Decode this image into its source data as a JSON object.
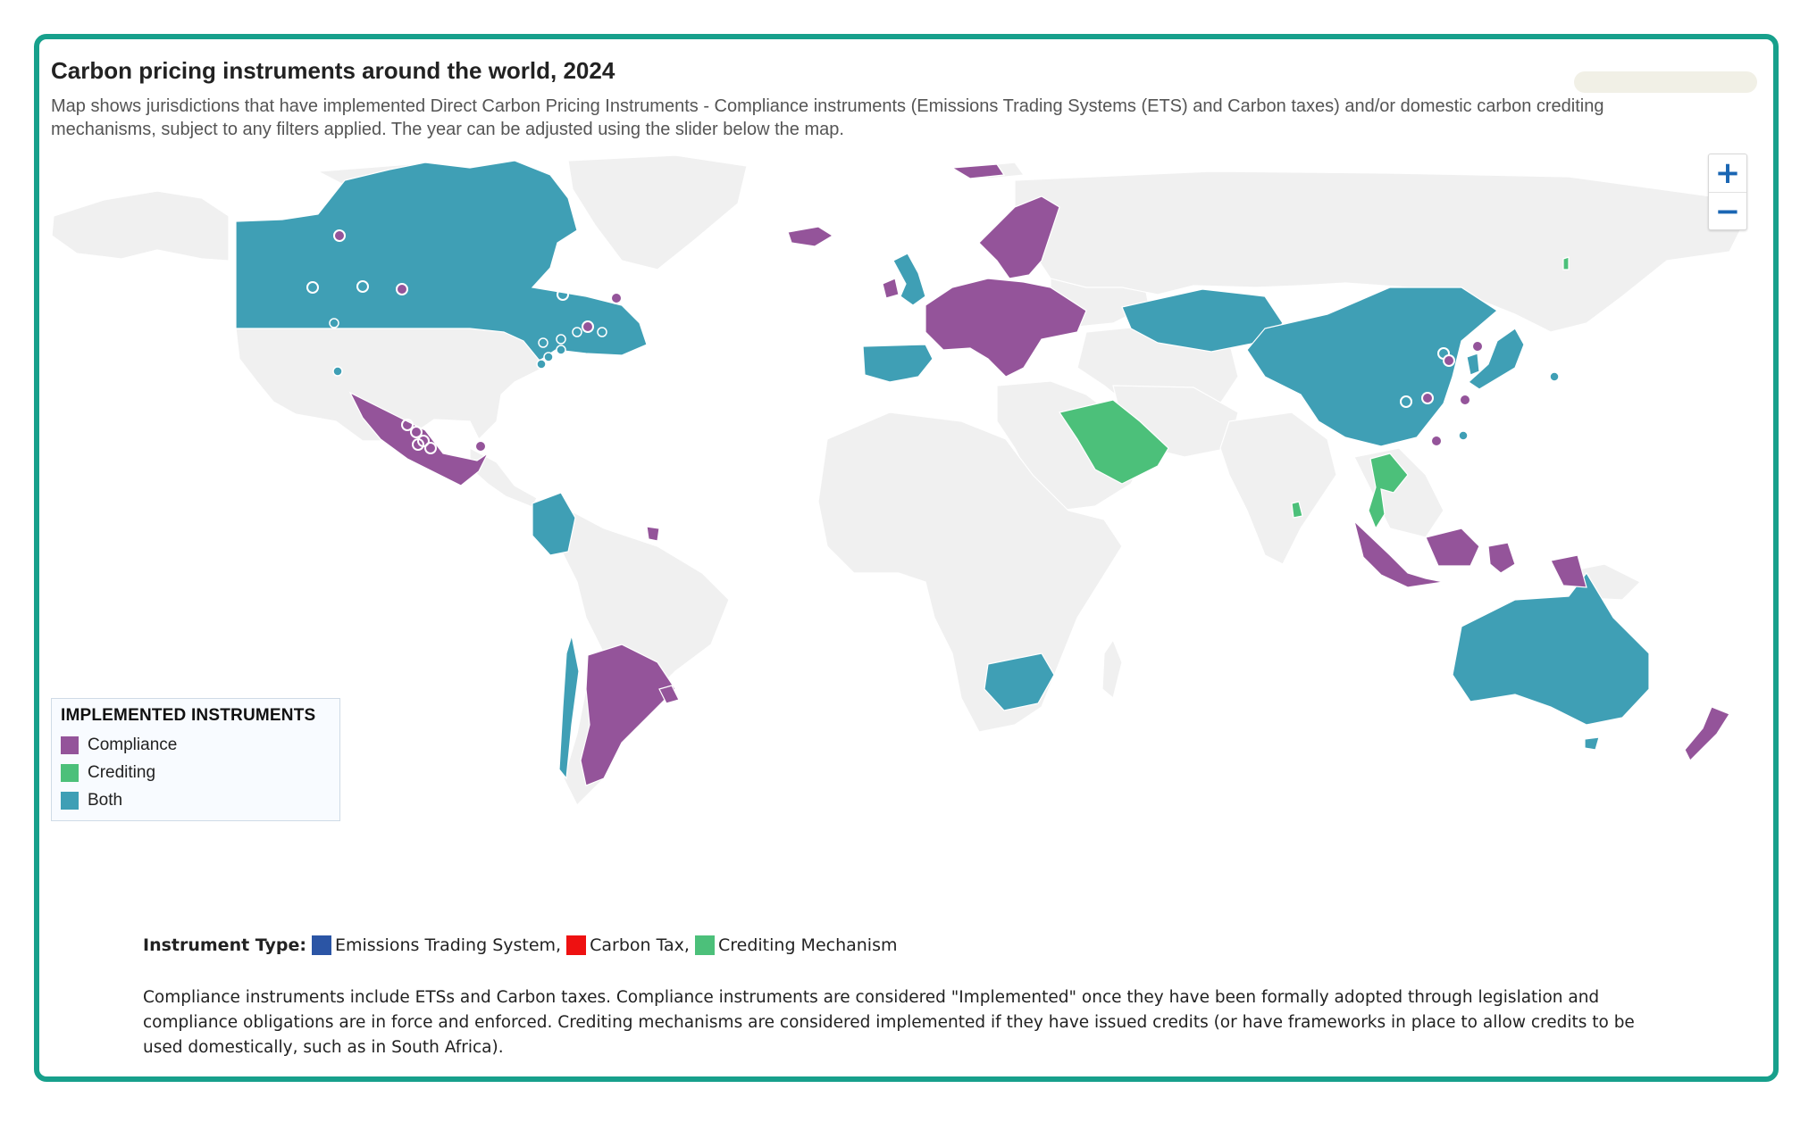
{
  "title": "Carbon pricing instruments around the world, 2024",
  "subtitle": "Map shows jurisdictions that have implemented Direct Carbon Pricing Instruments - Compliance instruments (Emissions Trading Systems (ETS) and Carbon taxes) and/or domestic carbon crediting mechanisms, subject to any filters applied. The year can be adjusted using the slider below the map.",
  "zoom": {
    "in_label": "+",
    "out_label": "−"
  },
  "colors": {
    "compliance": "#94549a",
    "crediting": "#4cc07a",
    "both": "#3f9fb5",
    "land": "#f0f0f0",
    "border": "#17a08c",
    "ets": "#2b55a5",
    "carbon_tax": "#ee1111",
    "crediting_mechanism": "#4cc07a"
  },
  "legend": {
    "title": "IMPLEMENTED INSTRUMENTS",
    "items": [
      {
        "label": "Compliance",
        "color": "#94549a"
      },
      {
        "label": "Crediting",
        "color": "#4cc07a"
      },
      {
        "label": "Both",
        "color": "#3f9fb5"
      }
    ]
  },
  "instrument_type": {
    "label": "Instrument Type:",
    "items": [
      {
        "label": "Emissions Trading System,",
        "color": "#2b55a5"
      },
      {
        "label": "Carbon Tax,",
        "color": "#ee1111"
      },
      {
        "label": "Crediting Mechanism",
        "color": "#4cc07a"
      }
    ]
  },
  "footnote": "Compliance instruments include ETSs and Carbon taxes. Compliance instruments are considered \"Implemented\" once they have been formally adopted through legislation and compliance obligations are in force and enforced. Crediting mechanisms are considered implemented if they have issued credits (or have frameworks in place to allow credits to be used domestically, such as in South Africa)."
}
